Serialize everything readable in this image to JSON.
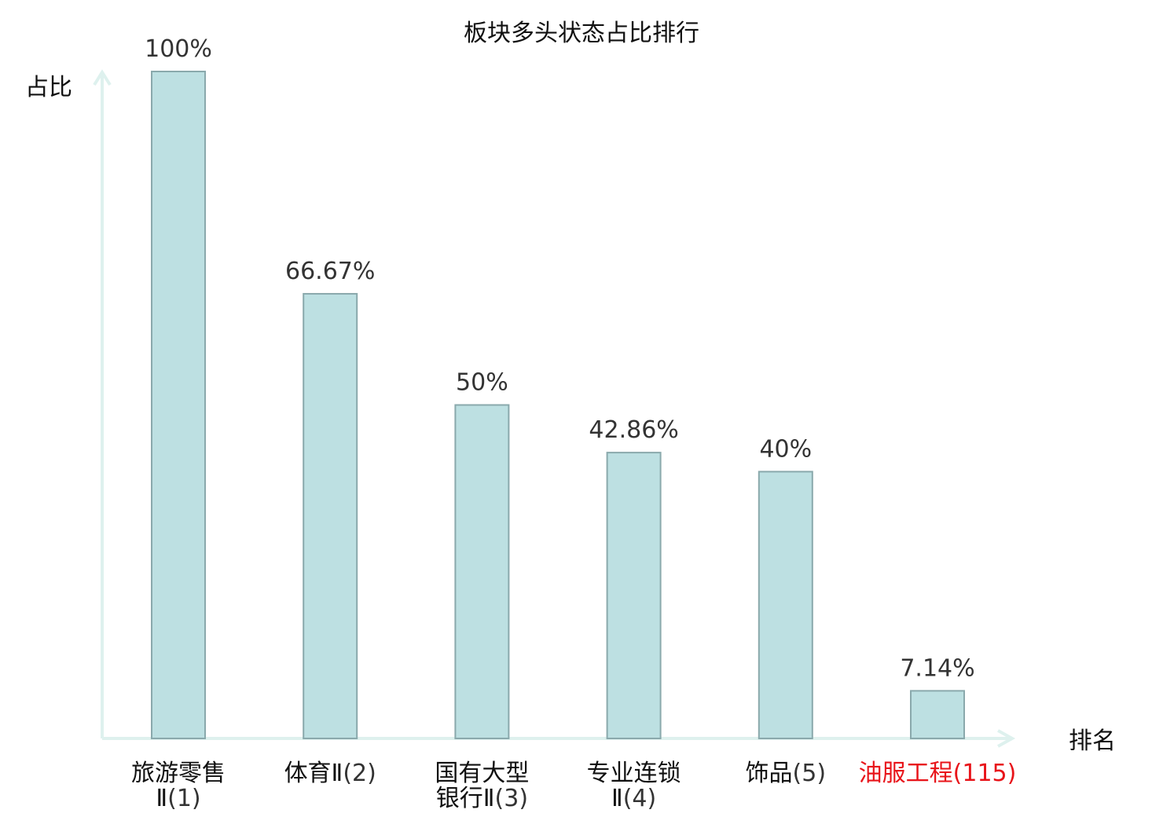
{
  "chart_data": {
    "type": "bar",
    "title": "板块多头状态占比排行",
    "ylabel": "占比",
    "xlabel": "排名",
    "ylim": [
      0,
      100
    ],
    "grid": false,
    "categories": [
      {
        "name_lines": [
          "旅游零售",
          "Ⅱ"
        ],
        "rank": "(1)",
        "highlight": false
      },
      {
        "name_lines": [
          "体育Ⅱ"
        ],
        "rank": "(2)",
        "highlight": false
      },
      {
        "name_lines": [
          "国有大型",
          "银行Ⅱ"
        ],
        "rank": "(3)",
        "highlight": false
      },
      {
        "name_lines": [
          "专业连锁",
          "Ⅱ"
        ],
        "rank": "(4)",
        "highlight": false
      },
      {
        "name_lines": [
          "饰品"
        ],
        "rank": "(5)",
        "highlight": false
      },
      {
        "name_lines": [
          "油服工程"
        ],
        "rank": "(115)",
        "highlight": true
      }
    ],
    "values": [
      100,
      66.67,
      50,
      42.86,
      40,
      7.14
    ],
    "value_labels": [
      "100%",
      "66.67%",
      "50%",
      "42.86%",
      "40%",
      "7.14%"
    ],
    "colors": {
      "bar_fill": "#bde0e2",
      "bar_stroke": "#8aa9ac",
      "axis": "#def1ee",
      "highlight": "#e8141a",
      "rank_text": "#333333",
      "name_text": "#111111"
    }
  }
}
